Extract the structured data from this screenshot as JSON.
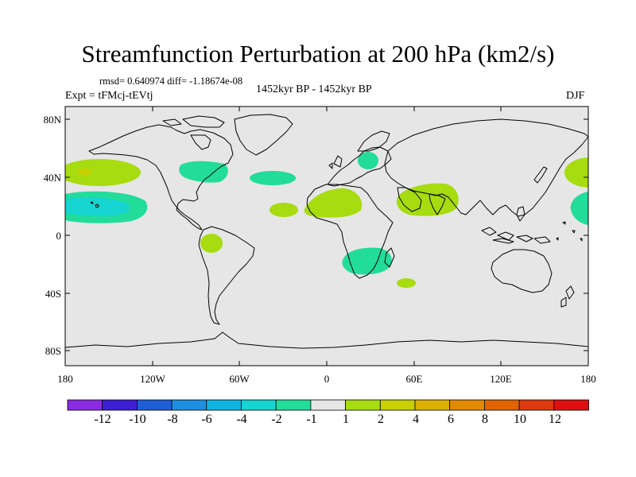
{
  "title": "Streamfunction Perturbation at 200 hPa (km2/s)",
  "rmsd_text": "rmsd= 0.640974 diff= -1.18674e-08",
  "expt_text": "Expt = tFMcj-tEVtj",
  "period_text": "1452kyr BP - 1452kyr BP",
  "season": "DJF",
  "map": {
    "background": "#e6e6e6",
    "lat_ticks": [
      "80N",
      "40N",
      "0",
      "40S",
      "80S"
    ],
    "lon_ticks": [
      "180",
      "120W",
      "60W",
      "0",
      "60E",
      "120E",
      "180"
    ]
  },
  "colorbar": {
    "colors": [
      "#8a2be2",
      "#3c1fd6",
      "#1e5fd8",
      "#1e8fe0",
      "#10b4e0",
      "#16d4d0",
      "#22dc9a",
      "#e6e6e6",
      "#a6dc10",
      "#c8d000",
      "#dcb000",
      "#e28a00",
      "#e26400",
      "#e03a10",
      "#e01010"
    ],
    "labels": [
      "-12",
      "-10",
      "-8",
      "-6",
      "-4",
      "-2",
      "-1",
      "1",
      "2",
      "4",
      "6",
      "8",
      "10",
      "12"
    ]
  },
  "anomalies": [
    {
      "region": "north-pacific-east",
      "value": "2"
    },
    {
      "region": "north-pacific-west",
      "value": "2"
    },
    {
      "region": "tropical-pacific-east",
      "value": "-2"
    },
    {
      "region": "tropical-pacific-west",
      "value": "-2"
    },
    {
      "region": "east-north-america",
      "value": "-2"
    },
    {
      "region": "north-atlantic",
      "value": "-2"
    },
    {
      "region": "europe",
      "value": "-2"
    },
    {
      "region": "south-america",
      "value": "2"
    },
    {
      "region": "tropical-atlantic",
      "value": "2"
    },
    {
      "region": "north-africa",
      "value": "2"
    },
    {
      "region": "india",
      "value": "2"
    },
    {
      "region": "southern-africa",
      "value": "-2"
    },
    {
      "region": "south-indian-ocean",
      "value": "2"
    }
  ]
}
